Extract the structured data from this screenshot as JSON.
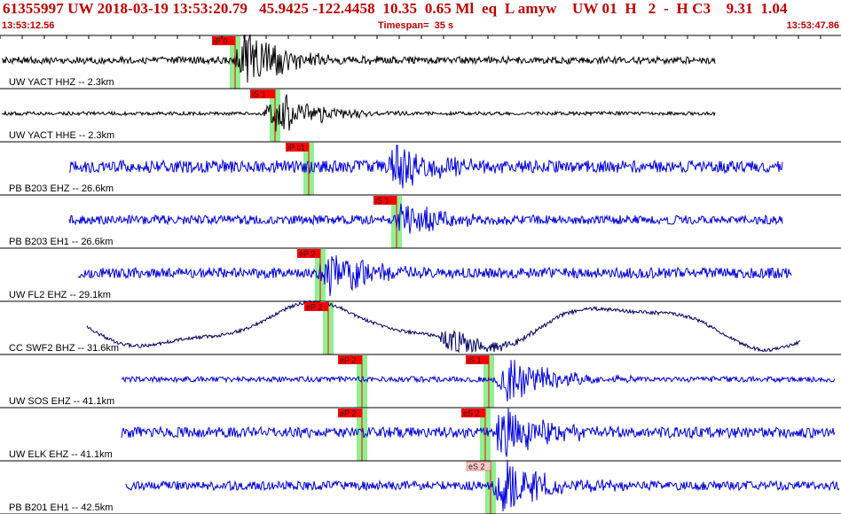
{
  "header": {
    "title": "61355997 UW 2018-03-19 13:53:20.79   45.9425 -122.4458  10.35  0.65 Ml  eq  L amyw    UW 01  H   2  -  H C3    9.31  1.04",
    "start_time": "13:53:12.56",
    "timespan": "Timespan=  35 s",
    "end_time": "13:53:47.86"
  },
  "colors": {
    "title": "#c00000",
    "trace_short_period": "#000000",
    "trace_broadband": "#0000e0",
    "trace_longperiod": "#000060",
    "pick_flag": "#ff0000",
    "pick_flag_alt": "#ffc8c8",
    "pick_band": "#90f090",
    "separator": "#000000"
  },
  "panels": [
    {
      "label": "UW YACT HHZ -- 2.3km",
      "trace": {
        "color": "black",
        "x0": 2,
        "x1": 806,
        "amp": 34,
        "noise": 4,
        "quake": 270,
        "wave": 0,
        "seed": 3
      },
      "picks": [
        {
          "label": "iP 0",
          "x": 265,
          "tag_left": 239,
          "color": "red"
        }
      ]
    },
    {
      "label": "UW YACT HHE -- 2.3km",
      "trace": {
        "color": "black",
        "x0": 2,
        "x1": 806,
        "amp": 28,
        "noise": 2,
        "quake": 305,
        "wave": 0,
        "seed": 7
      },
      "picks": [
        {
          "label": "iS 1",
          "x": 310,
          "tag_left": 282,
          "color": "red"
        }
      ]
    },
    {
      "label": "PB B203 EHZ -- 26.6km",
      "trace": {
        "color": "blue",
        "x0": 78,
        "x1": 882,
        "amp": 26,
        "noise": 7,
        "quake": 440,
        "wave": 0,
        "seed": 11
      },
      "picks": [
        {
          "label": "iP c1",
          "x": 348,
          "tag_left": 322,
          "color": "red"
        }
      ]
    },
    {
      "label": "PB B203 EH1 -- 26.6km",
      "trace": {
        "color": "blue",
        "x0": 78,
        "x1": 882,
        "amp": 22,
        "noise": 5,
        "quake": 450,
        "wave": 0,
        "seed": 17
      },
      "picks": [
        {
          "label": "iS 1",
          "x": 447,
          "tag_left": 421,
          "color": "red"
        }
      ]
    },
    {
      "label": "UW FL2 EHZ -- 29.1km",
      "trace": {
        "color": "blue",
        "x0": 88,
        "x1": 892,
        "amp": 28,
        "noise": 6,
        "quake": 365,
        "wave": 0,
        "seed": 23
      },
      "picks": [
        {
          "label": "eP 2",
          "x": 361,
          "tag_left": 335,
          "color": "red"
        }
      ]
    },
    {
      "label": "CC SWF2 BHZ -- 31.6km",
      "trace": {
        "color": "navy",
        "x0": 98,
        "x1": 902,
        "amp": 18,
        "noise": 2,
        "quake": 500,
        "wave": 22,
        "seed": 29
      },
      "picks": [
        {
          "label": "eP 2",
          "x": 370,
          "tag_left": 343,
          "color": "red"
        }
      ]
    },
    {
      "label": "UW SOS EHZ -- 41.1km",
      "trace": {
        "color": "blue",
        "x0": 137,
        "x1": 941,
        "amp": 30,
        "noise": 3,
        "quake": 565,
        "wave": 0,
        "seed": 31
      },
      "picks": [
        {
          "label": "eP 2",
          "x": 408,
          "tag_left": 381,
          "color": "red"
        },
        {
          "label": "iS 1",
          "x": 551,
          "tag_left": 525,
          "color": "red"
        }
      ]
    },
    {
      "label": "UW ELK EHZ -- 41.1km",
      "trace": {
        "color": "blue",
        "x0": 137,
        "x1": 941,
        "amp": 30,
        "noise": 6,
        "quake": 560,
        "wave": 0,
        "seed": 37
      },
      "picks": [
        {
          "label": "eP 2",
          "x": 408,
          "tag_left": 381,
          "color": "red"
        },
        {
          "label": "eS 2",
          "x": 547,
          "tag_left": 520,
          "color": "red"
        }
      ]
    },
    {
      "label": "PB B201 EH1 -- 42.5km",
      "trace": {
        "color": "blue",
        "x0": 142,
        "x1": 946,
        "amp": 30,
        "noise": 5,
        "quake": 560,
        "wave": 0,
        "seed": 41
      },
      "picks": [
        {
          "label": "eS 2",
          "x": 553,
          "tag_left": 526,
          "color": "pink"
        }
      ]
    }
  ]
}
